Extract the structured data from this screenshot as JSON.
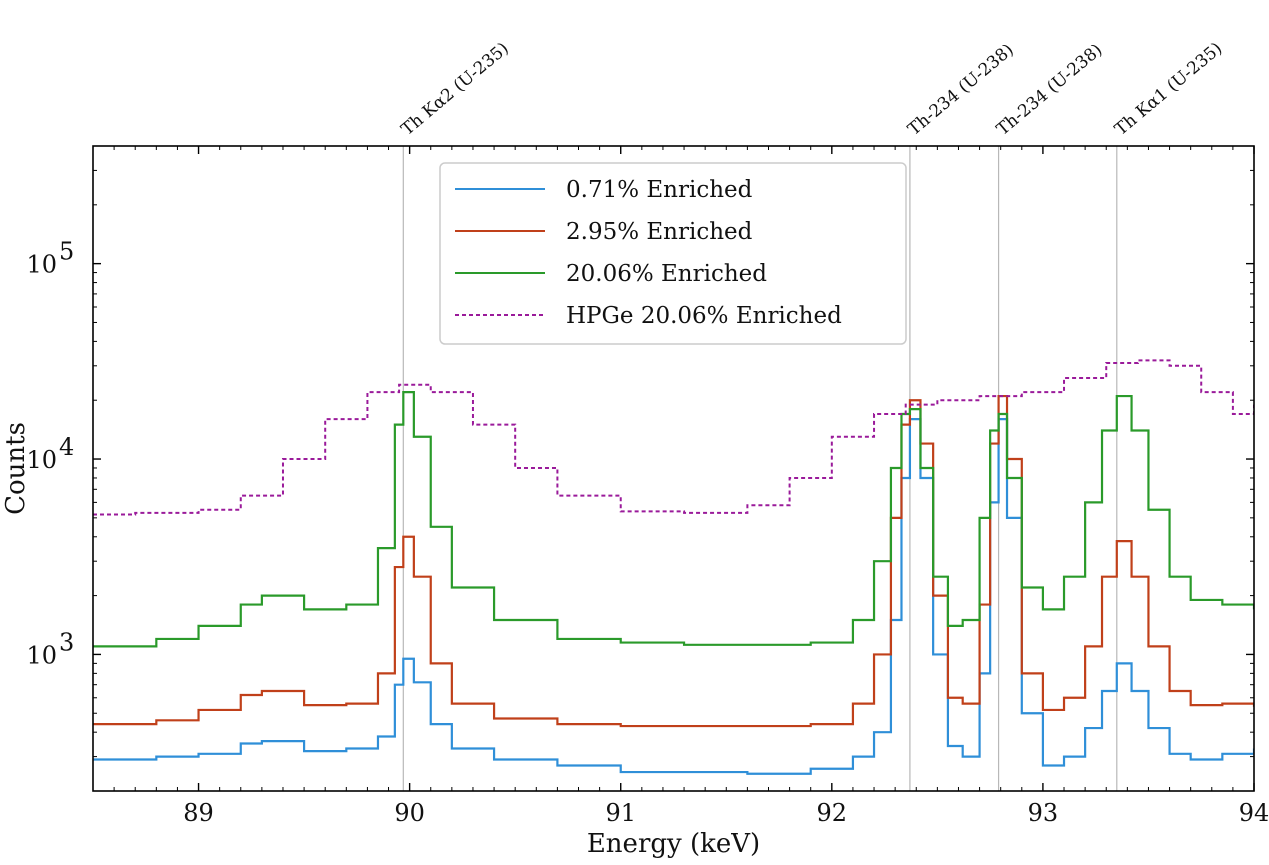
{
  "chart_data": {
    "type": "line",
    "title": "",
    "xlabel": "Energy (keV)",
    "ylabel": "Counts",
    "xlim": [
      88.5,
      94
    ],
    "ylim": [
      200,
      400000
    ],
    "yscale": "log",
    "x_ticks": [
      89,
      90,
      91,
      92,
      93,
      94
    ],
    "x_tick_labels": [
      "89",
      "90",
      "91",
      "92",
      "93",
      "94"
    ],
    "y_ticks": [
      1000,
      10000,
      100000
    ],
    "y_tick_labels": [
      {
        "base": "10",
        "exp": "3"
      },
      {
        "base": "10",
        "exp": "4"
      },
      {
        "base": "10",
        "exp": "5"
      }
    ],
    "legend_position": "top-center",
    "annotations": [
      {
        "x": 89.97,
        "label": "Th Kα2 (U-235)"
      },
      {
        "x": 92.37,
        "label": "Th-234 (U-238)"
      },
      {
        "x": 92.79,
        "label": "Th-234 (U-238)"
      },
      {
        "x": 93.35,
        "label": "Th Kα1 (U-235)"
      }
    ],
    "series": [
      {
        "name": "0.71% Enriched",
        "color": "#2f8fd8",
        "style": "solid",
        "x": [
          88.5,
          88.8,
          89.0,
          89.2,
          89.3,
          89.5,
          89.7,
          89.85,
          89.93,
          89.97,
          90.02,
          90.1,
          90.2,
          90.4,
          90.7,
          91.0,
          91.3,
          91.6,
          91.9,
          92.1,
          92.2,
          92.28,
          92.33,
          92.37,
          92.42,
          92.48,
          92.55,
          92.62,
          92.7,
          92.75,
          92.79,
          92.83,
          92.9,
          93.0,
          93.1,
          93.2,
          93.28,
          93.35,
          93.42,
          93.5,
          93.6,
          93.7,
          93.85,
          94.0
        ],
        "y": [
          290,
          300,
          310,
          350,
          360,
          320,
          330,
          380,
          700,
          950,
          720,
          440,
          330,
          290,
          270,
          250,
          250,
          245,
          260,
          300,
          400,
          1500,
          8000,
          16000,
          8000,
          1000,
          340,
          300,
          800,
          6000,
          16000,
          5000,
          500,
          270,
          300,
          420,
          650,
          900,
          650,
          420,
          310,
          290,
          310,
          330
        ]
      },
      {
        "name": "2.95% Enriched",
        "color": "#c0401a",
        "style": "solid",
        "x": [
          88.5,
          88.8,
          89.0,
          89.2,
          89.3,
          89.5,
          89.7,
          89.85,
          89.93,
          89.97,
          90.02,
          90.1,
          90.2,
          90.4,
          90.7,
          91.0,
          91.3,
          91.6,
          91.9,
          92.1,
          92.2,
          92.28,
          92.33,
          92.37,
          92.42,
          92.48,
          92.55,
          92.62,
          92.7,
          92.75,
          92.79,
          92.83,
          92.9,
          93.0,
          93.1,
          93.2,
          93.28,
          93.35,
          93.42,
          93.5,
          93.6,
          93.7,
          93.85,
          94.0
        ],
        "y": [
          440,
          460,
          520,
          620,
          650,
          550,
          560,
          800,
          2800,
          4000,
          2500,
          900,
          560,
          470,
          440,
          430,
          430,
          430,
          440,
          560,
          1000,
          5000,
          15000,
          20000,
          12000,
          2000,
          600,
          560,
          1800,
          12000,
          21000,
          10000,
          800,
          520,
          600,
          1100,
          2500,
          3800,
          2500,
          1100,
          650,
          550,
          560,
          540
        ]
      },
      {
        "name": "20.06% Enriched",
        "color": "#2a9a2a",
        "style": "solid",
        "x": [
          88.5,
          88.8,
          89.0,
          89.2,
          89.3,
          89.5,
          89.7,
          89.85,
          89.93,
          89.97,
          90.02,
          90.1,
          90.2,
          90.4,
          90.7,
          91.0,
          91.3,
          91.6,
          91.9,
          92.1,
          92.2,
          92.28,
          92.33,
          92.37,
          92.42,
          92.48,
          92.55,
          92.62,
          92.7,
          92.75,
          92.79,
          92.83,
          92.9,
          93.0,
          93.1,
          93.2,
          93.28,
          93.35,
          93.42,
          93.5,
          93.6,
          93.7,
          93.85,
          94.0
        ],
        "y": [
          1100,
          1200,
          1400,
          1800,
          2000,
          1700,
          1800,
          3500,
          15000,
          22000,
          13000,
          4500,
          2200,
          1500,
          1200,
          1150,
          1120,
          1120,
          1150,
          1500,
          3000,
          9000,
          17000,
          18000,
          9000,
          2500,
          1400,
          1500,
          5000,
          14000,
          17000,
          8000,
          2200,
          1700,
          2500,
          6000,
          14000,
          21000,
          14000,
          5500,
          2500,
          1900,
          1800,
          1700
        ]
      },
      {
        "name": "HPGe 20.06% Enriched",
        "color": "#9a1a9a",
        "style": "dashed",
        "x": [
          88.5,
          88.7,
          89.0,
          89.2,
          89.4,
          89.6,
          89.8,
          89.95,
          90.1,
          90.3,
          90.5,
          90.7,
          91.0,
          91.3,
          91.6,
          91.8,
          92.0,
          92.2,
          92.35,
          92.5,
          92.7,
          92.9,
          93.1,
          93.3,
          93.45,
          93.6,
          93.75,
          93.9,
          94.0
        ],
        "y": [
          5200,
          5300,
          5500,
          6500,
          10000,
          16000,
          22000,
          24000,
          22000,
          15000,
          9000,
          6500,
          5400,
          5300,
          5800,
          8000,
          13000,
          17000,
          19000,
          20000,
          21000,
          22000,
          26000,
          31000,
          32000,
          30000,
          22000,
          17000,
          19000
        ]
      }
    ]
  }
}
